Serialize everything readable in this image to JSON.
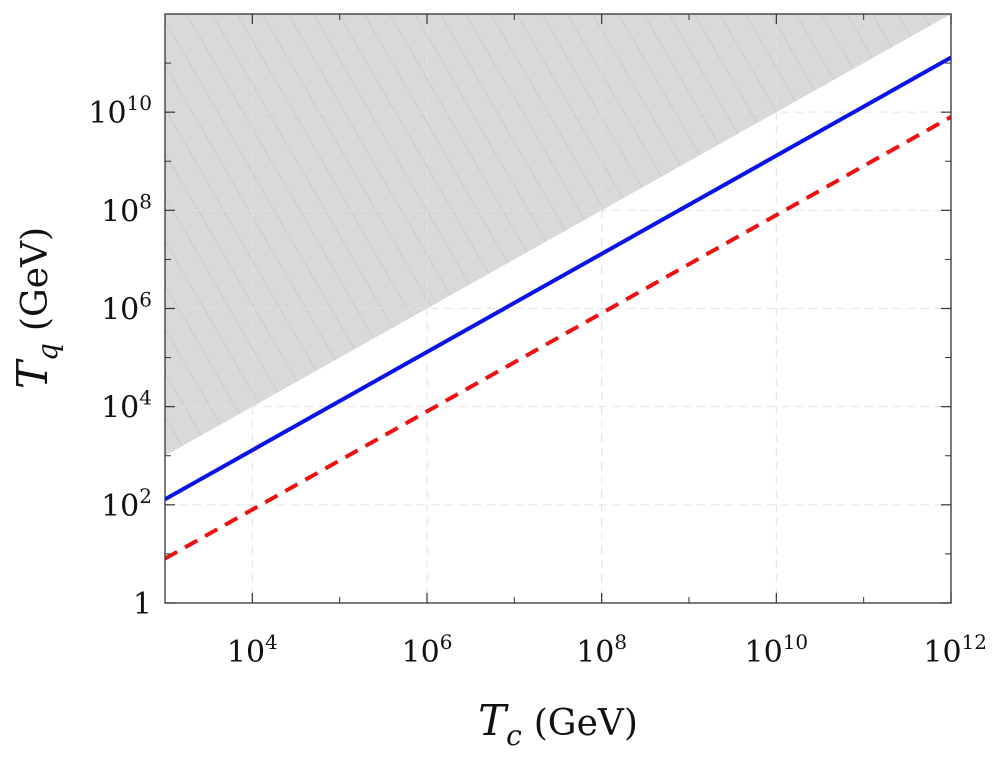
{
  "chart_data": {
    "type": "line",
    "title": "",
    "x_scale": "log",
    "y_scale": "log",
    "xlim": [
      1000,
      1000000000000
    ],
    "ylim": [
      1,
      1000000000000
    ],
    "grid": true,
    "xlabel": {
      "symbol": "T",
      "subscript": "c",
      "unit": "(GeV)"
    },
    "ylabel": {
      "symbol": "T",
      "subscript": "q",
      "unit": "(GeV)"
    },
    "x_ticks": [
      {
        "value": 10000,
        "base": "10",
        "exp": "4"
      },
      {
        "value": 1000000,
        "base": "10",
        "exp": "6"
      },
      {
        "value": 100000000,
        "base": "10",
        "exp": "8"
      },
      {
        "value": 10000000000,
        "base": "10",
        "exp": "10"
      },
      {
        "value": 1000000000000,
        "base": "10",
        "exp": "12"
      }
    ],
    "y_ticks": [
      {
        "value": 1,
        "base": "1",
        "exp": ""
      },
      {
        "value": 100,
        "base": "10",
        "exp": "2"
      },
      {
        "value": 10000,
        "base": "10",
        "exp": "4"
      },
      {
        "value": 1000000,
        "base": "10",
        "exp": "6"
      },
      {
        "value": 100000000,
        "base": "10",
        "exp": "8"
      },
      {
        "value": 10000000000,
        "base": "10",
        "exp": "10"
      }
    ],
    "x_minor_ticks": [
      1000,
      100000,
      10000000,
      1000000000,
      100000000000
    ],
    "y_minor_ticks": [
      10,
      1000,
      100000,
      10000000,
      1000000000,
      100000000000
    ],
    "series": [
      {
        "style": "solid",
        "color": "#0a14e6",
        "x": [
          1000,
          1000000000000
        ],
        "y": [
          130,
          130000000000
        ]
      },
      {
        "style": "dashed",
        "color": "#ee1111",
        "x": [
          1000,
          1000000000000
        ],
        "y": [
          8,
          8000000000
        ]
      }
    ],
    "shaded_region": {
      "color": "#d9d9d9",
      "hatch_color": "#bdbdbd",
      "boundary_x": [
        1000,
        1000000000000
      ],
      "boundary_y": [
        1000,
        1000000000000
      ],
      "description": "excluded region above boundary line"
    }
  }
}
